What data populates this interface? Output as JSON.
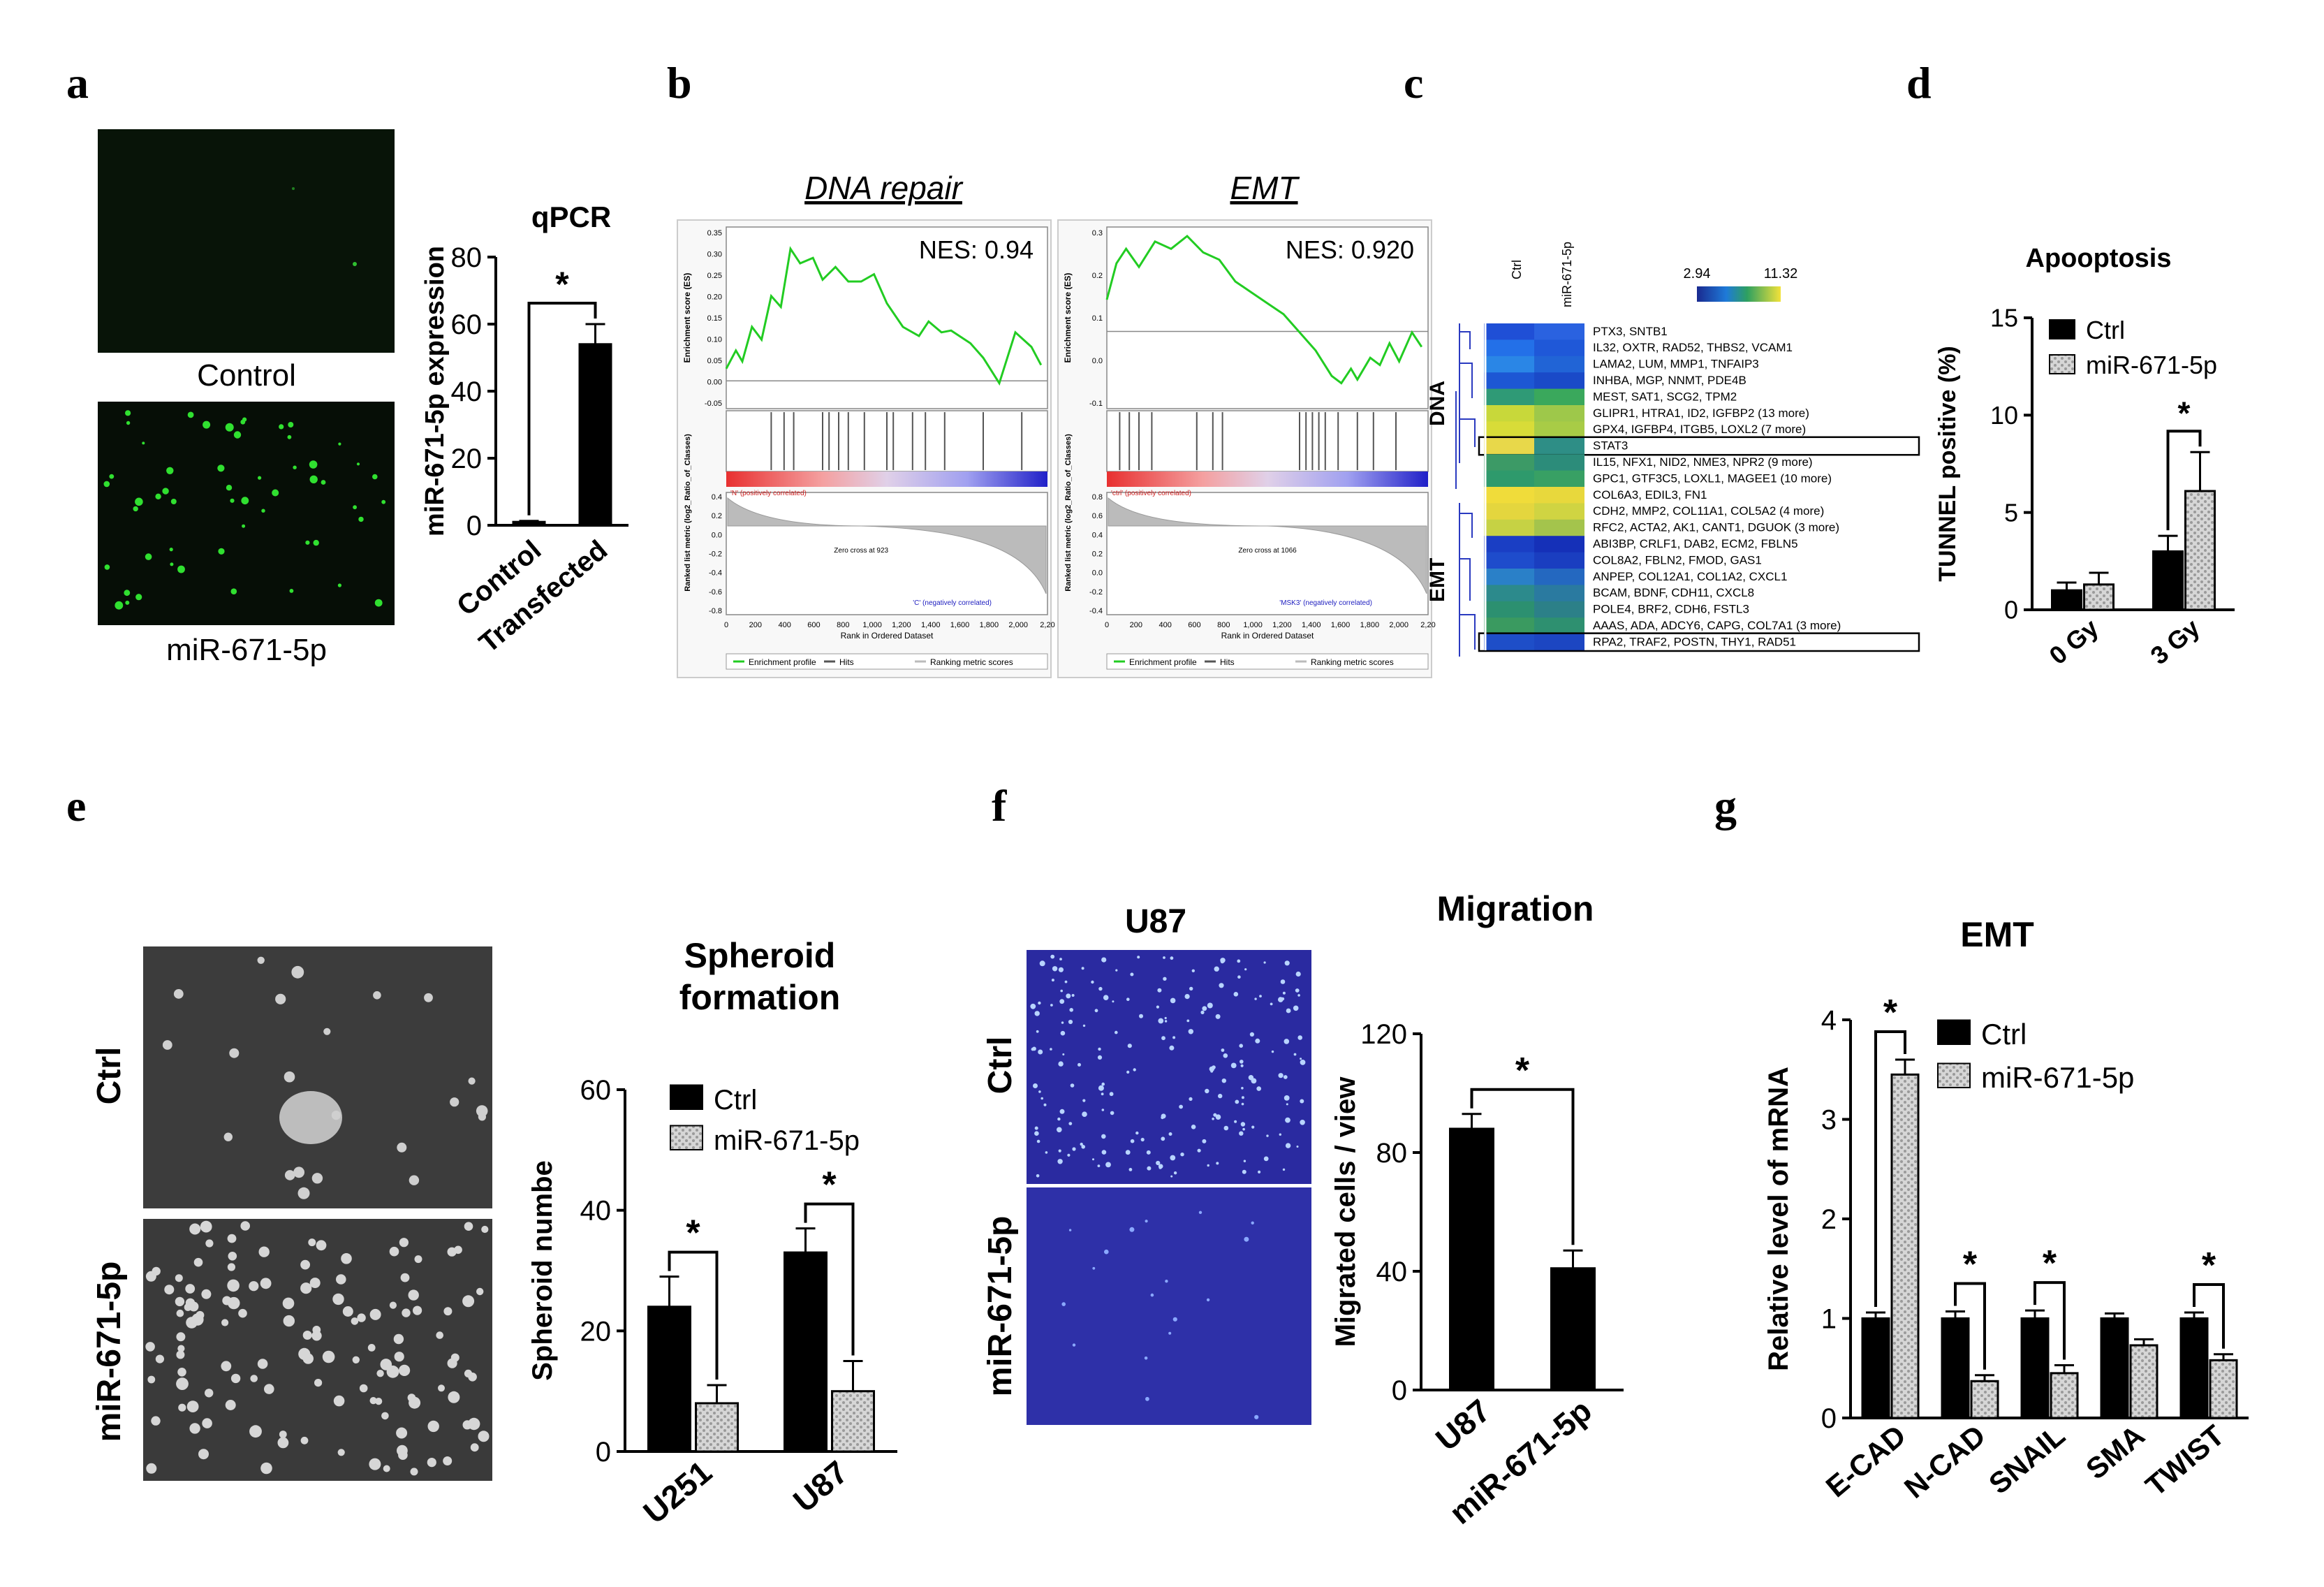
{
  "panels": {
    "a": {
      "letter": "a",
      "image_labels": [
        "Control",
        "miR-671-5p"
      ],
      "chart_title": "qPCR"
    },
    "b": {
      "letter": "b",
      "plots": [
        {
          "title": "DNA repair",
          "nes": "NES: 0.94",
          "y_label_top": "Enrichment score (ES)",
          "y_label_bottom": "Ranked list metric (log2_Ratio_of_Classes)",
          "x_label": "Rank in Ordered Dataset",
          "pos_label": "'N' (positively correlated)",
          "neg_label": "'C' (negatively correlated)",
          "zero_cross": "Zero cross at 923",
          "legend": [
            "Enrichment profile",
            "Hits",
            "Ranking metric scores"
          ],
          "es_ticks": [
            "0.35",
            "0.30",
            "0.25",
            "0.20",
            "0.15",
            "0.10",
            "0.05",
            "0.00",
            "-0.05"
          ],
          "metric_ticks": [
            "0.4",
            "0.2",
            "0.0",
            "-0.2",
            "-0.4",
            "-0.6",
            "-0.8"
          ],
          "x_ticks": [
            "0",
            "200",
            "400",
            "600",
            "800",
            "1,000",
            "1,200",
            "1,400",
            "1,600",
            "1,800",
            "2,000",
            "2,20"
          ]
        },
        {
          "title": "EMT",
          "nes": "NES: 0.920",
          "y_label_top": "Enrichment score (ES)",
          "y_label_bottom": "Ranked list metric (log2_Ratio_of_Classes)",
          "x_label": "Rank in Ordered Dataset",
          "pos_label": "'ctrl' (positively correlated)",
          "neg_label": "'MSK3' (negatively correlated)",
          "zero_cross": "Zero cross at 1066",
          "legend": [
            "Enrichment profile",
            "Hits",
            "Ranking metric scores"
          ],
          "es_ticks": [
            "0.3",
            "0.2",
            "0.1",
            "0.0",
            "-0.1"
          ],
          "metric_ticks": [
            "0.8",
            "0.6",
            "0.4",
            "0.2",
            "0.0",
            "-0.2",
            "-0.4"
          ],
          "x_ticks": [
            "0",
            "200",
            "400",
            "600",
            "800",
            "1,000",
            "1,200",
            "1,400",
            "1,600",
            "1,800",
            "2,000",
            "2,20"
          ]
        }
      ]
    },
    "c": {
      "letter": "c",
      "scale_min": "2.94",
      "scale_max": "11.32",
      "columns": [
        "Ctrl",
        "miR-671-5p"
      ],
      "group_labels": [
        "DNA",
        "EMT"
      ],
      "rows": [
        "PTX3, SNTB1",
        "IL32, OXTR, RAD52, THBS2, VCAM1",
        "LAMA2, LUM, MMP1, TNFAIP3",
        "INHBA, MGP, NNMT, PDE4B",
        "MEST, SAT1, SCG2, TPM2",
        "GLIPR1, HTRA1, ID2, IGFBP2 (13 more)",
        "GPX4, IGFBP4, ITGB5, LOXL2 (7 more)",
        "STAT3",
        "IL15, NFX1, NID2, NME3, NPR2 (9 more)",
        "GPC1, GTF3C5, LOXL1, MAGEE1 (10 more)",
        "COL6A3, EDIL3, FN1",
        "CDH2, MMP2, COL11A1, COL5A2 (4 more)",
        "RFC2, ACTA2, AK1, CANT1, DGUOK (3 more)",
        "ABI3BP, CRLF1, DAB2, ECM2, FBLN5",
        "COL8A2, FBLN2, FMOD, GAS1",
        "ANPEP, COL12A1, COL1A2, CXCL1",
        "BCAM, BDNF, CDH11, CXCL8",
        "POLE4, BRF2, CDH6, FSTL3",
        "AAAS, ADA, ADCY6, CAPG, COL7A1 (3 more)",
        "RPA2, TRAF2, POSTN, THY1, RAD51"
      ],
      "cell_colors": [
        [
          "#1f4fd6",
          "#2a62e0"
        ],
        [
          "#2370e8",
          "#1f58d8"
        ],
        [
          "#2a86e6",
          "#2164d6"
        ],
        [
          "#1d57d4",
          "#1a4ac8"
        ],
        [
          "#2f9a76",
          "#3aa85c"
        ],
        [
          "#c8d83a",
          "#9ec84a"
        ],
        [
          "#d8dc38",
          "#a8cc46"
        ],
        [
          "#e8d84a",
          "#2e8e86"
        ],
        [
          "#3c9a66",
          "#2c8c7a"
        ],
        [
          "#2e9a6c",
          "#38a064"
        ],
        [
          "#f0dc3a",
          "#e8d83c"
        ],
        [
          "#e4d63e",
          "#d0d442"
        ],
        [
          "#c6d244",
          "#a4c44c"
        ],
        [
          "#1a3ec4",
          "#1530b8"
        ],
        [
          "#1e4ccc",
          "#1a3ec0"
        ],
        [
          "#2a80c8",
          "#2468c0"
        ],
        [
          "#2c8a8c",
          "#2a7aa0"
        ],
        [
          "#2c9070",
          "#2c8088"
        ],
        [
          "#3a9a60",
          "#2e9070"
        ],
        [
          "#1e4ec8",
          "#1c46c2"
        ]
      ]
    },
    "d": {
      "letter": "d"
    },
    "e": {
      "letter": "e",
      "image_labels": [
        "Ctrl",
        "miR-671-5p"
      ]
    },
    "f": {
      "letter": "f",
      "image_title": "U87",
      "image_labels": [
        "Ctrl",
        "miR-671-5p"
      ]
    },
    "g": {
      "letter": "g"
    }
  },
  "colors": {
    "ctrl": "#000000",
    "treated": "#c8c8c8",
    "gsea_line": "#22cc22",
    "gfp": "#30e030",
    "microscope_blue": "#2a2aa0"
  },
  "chart_data": [
    {
      "id": "a",
      "type": "bar",
      "title": "qPCR",
      "ylabel": "miR-671-5p expression",
      "xlabel": "",
      "ylim": [
        0,
        80
      ],
      "yticks": [
        0,
        20,
        40,
        60,
        80
      ],
      "categories": [
        "Control",
        "Transfected"
      ],
      "values": [
        1,
        54
      ],
      "errors": [
        0.3,
        6
      ],
      "significance": [
        {
          "pair": [
            0,
            1
          ],
          "label": "*"
        }
      ]
    },
    {
      "id": "d",
      "type": "bar",
      "title": "Apooptosis",
      "ylabel": "TUNNEL positive (%)",
      "ylim": [
        0,
        15
      ],
      "yticks": [
        0,
        5,
        10,
        15
      ],
      "categories": [
        "0 Gy",
        "3 Gy"
      ],
      "series": [
        {
          "name": "Ctrl",
          "values": [
            1.0,
            3.0
          ],
          "errors": [
            0.4,
            0.8
          ]
        },
        {
          "name": "miR-671-5p",
          "values": [
            1.3,
            6.1
          ],
          "errors": [
            0.6,
            2.0
          ]
        }
      ],
      "significance": [
        {
          "category": 1,
          "label": "*"
        }
      ]
    },
    {
      "id": "e",
      "type": "bar",
      "title": "Spheroid formation",
      "ylabel": "Spheroid numbe",
      "ylim": [
        0,
        60
      ],
      "yticks": [
        0,
        20,
        40,
        60
      ],
      "categories": [
        "U251",
        "U87"
      ],
      "series": [
        {
          "name": "Ctrl",
          "values": [
            24,
            33
          ],
          "errors": [
            5,
            4
          ]
        },
        {
          "name": "miR-671-5p",
          "values": [
            8,
            10
          ],
          "errors": [
            3,
            5
          ]
        }
      ],
      "significance": [
        {
          "category": 0,
          "label": "*"
        },
        {
          "category": 1,
          "label": "*"
        }
      ]
    },
    {
      "id": "f",
      "type": "bar",
      "title": "Migration",
      "ylabel": "Migrated cells / view",
      "ylim": [
        0,
        120
      ],
      "yticks": [
        0,
        40,
        80,
        120
      ],
      "categories": [
        "U87",
        "miR-671-5p"
      ],
      "values": [
        88,
        41
      ],
      "errors": [
        5,
        6
      ],
      "significance": [
        {
          "pair": [
            0,
            1
          ],
          "label": "*"
        }
      ]
    },
    {
      "id": "g",
      "type": "bar",
      "title": "EMT",
      "ylabel": "Relative level of mRNA",
      "ylim": [
        0,
        4
      ],
      "yticks": [
        0,
        1,
        2,
        3,
        4
      ],
      "categories": [
        "E-CAD",
        "N-CAD",
        "SNAIL",
        "SMA",
        "TWIST"
      ],
      "series": [
        {
          "name": "Ctrl",
          "values": [
            1.0,
            1.0,
            1.0,
            1.0,
            1.0
          ],
          "errors": [
            0.06,
            0.07,
            0.08,
            0.05,
            0.06
          ]
        },
        {
          "name": "miR-671-5p",
          "values": [
            3.45,
            0.37,
            0.45,
            0.73,
            0.58
          ],
          "errors": [
            0.15,
            0.06,
            0.08,
            0.06,
            0.06
          ]
        }
      ],
      "significance": [
        {
          "category": 0,
          "label": "*"
        },
        {
          "category": 1,
          "label": "*"
        },
        {
          "category": 2,
          "label": "*"
        },
        {
          "category": 4,
          "label": "*"
        }
      ]
    }
  ]
}
